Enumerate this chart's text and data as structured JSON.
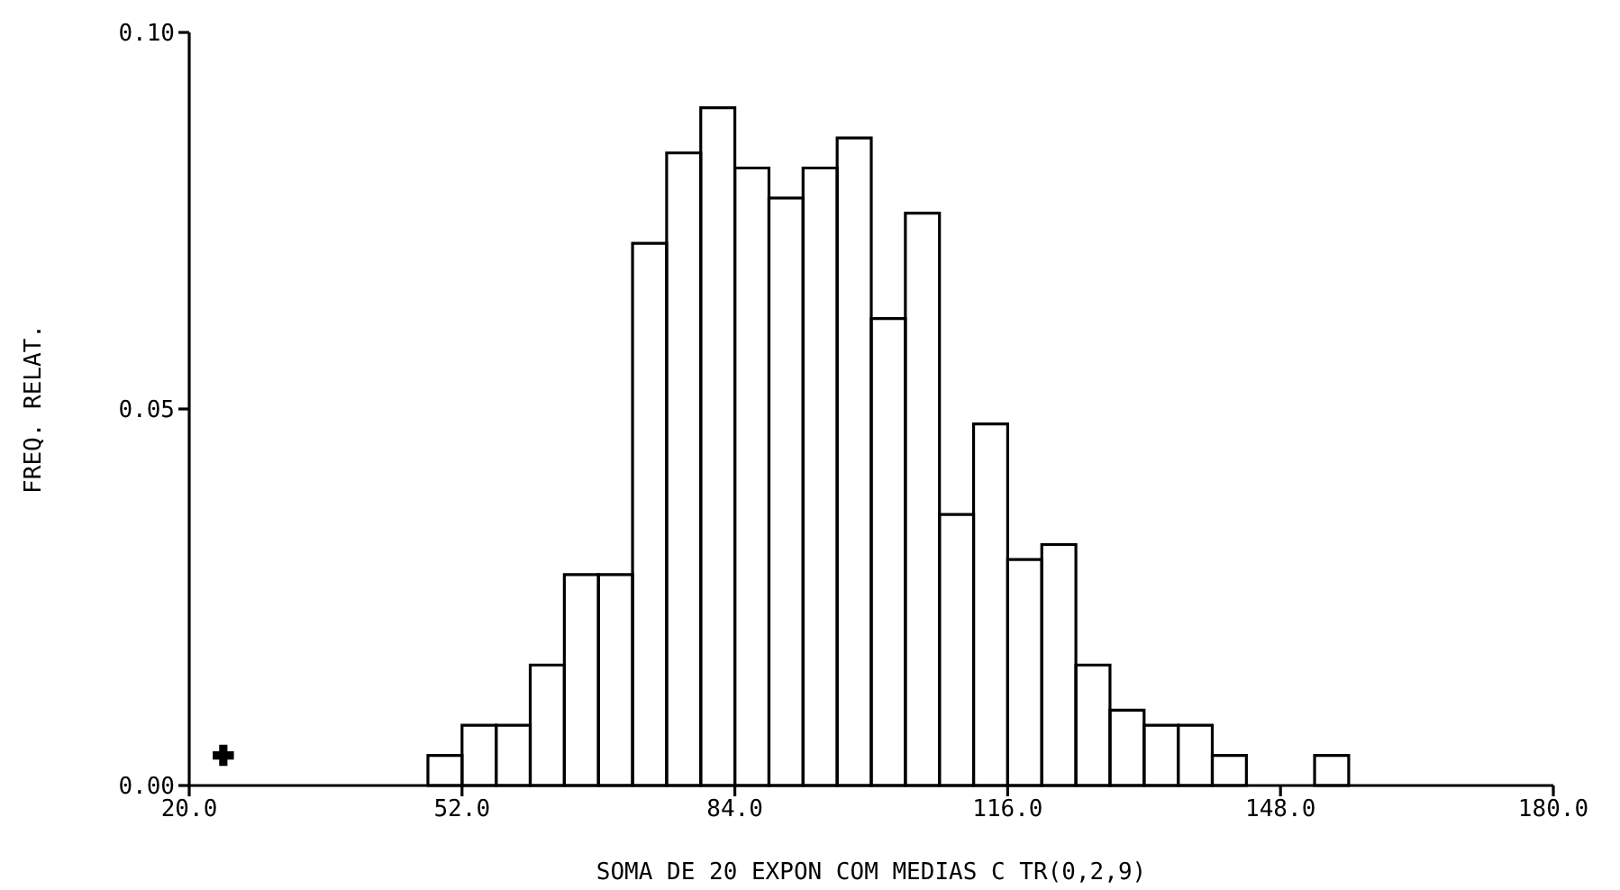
{
  "chart_data": {
    "type": "histogram",
    "xlabel": "SOMA DE 20 EXPON COM MEDIAS C TR(0,2,9)",
    "ylabel": "FREQ. RELAT.",
    "bins": [
      48,
      52,
      56,
      60,
      64,
      68,
      72,
      76,
      80,
      84,
      88,
      92,
      96,
      100,
      104,
      108,
      112,
      116,
      120,
      124,
      128,
      132,
      136,
      140,
      144,
      148,
      152,
      156
    ],
    "values": [
      0.004,
      0.008,
      0.008,
      0.016,
      0.028,
      0.028,
      0.072,
      0.084,
      0.09,
      0.082,
      0.078,
      0.082,
      0.086,
      0.062,
      0.076,
      0.036,
      0.048,
      0.03,
      0.032,
      0.016,
      0.01,
      0.008,
      0.008,
      0.004,
      0,
      0,
      0.004
    ],
    "color": "#000000",
    "series": [
      {
        "type": "scatter",
        "x": [
          24
        ],
        "values": [
          0.004
        ],
        "color": "#000000",
        "marker": "cross"
      }
    ],
    "xlim": [
      20,
      180
    ],
    "xticks": [
      {
        "value": 20,
        "label": "20.0"
      },
      {
        "value": 52,
        "label": "52.0"
      },
      {
        "value": 84,
        "label": "84.0"
      },
      {
        "value": 116,
        "label": "116.0"
      },
      {
        "value": 148,
        "label": "148.0"
      },
      {
        "value": 180,
        "label": "180.0"
      }
    ],
    "ylim": [
      0,
      0.1
    ],
    "yticks": [
      {
        "value": 0,
        "label": "0.00"
      },
      {
        "value": 0.05,
        "label": "0.05"
      },
      {
        "value": 0.1,
        "label": "0.10"
      }
    ],
    "grid": false
  }
}
